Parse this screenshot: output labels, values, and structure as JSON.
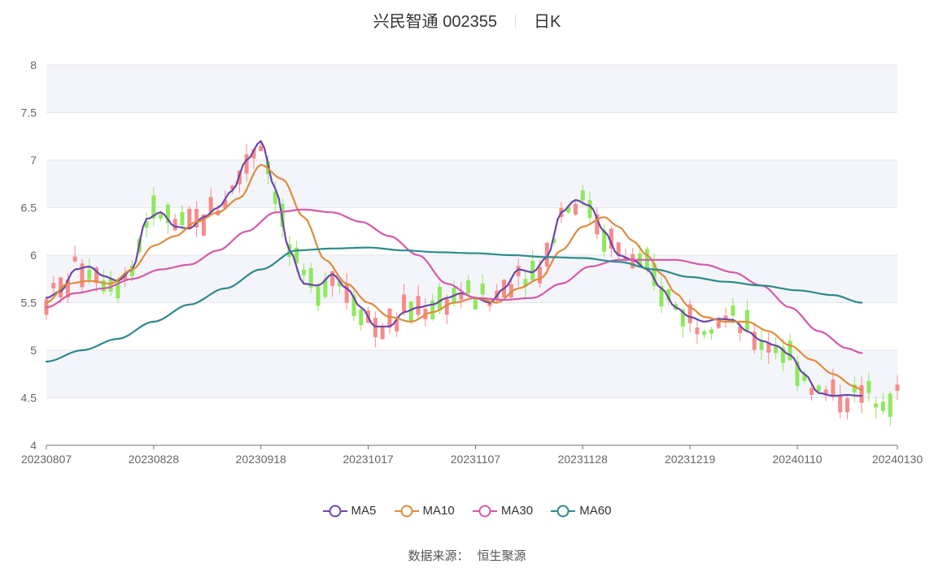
{
  "header": {
    "stock": "兴民智通 002355",
    "period": "日K"
  },
  "source": {
    "label": "数据来源：",
    "provider": "恒生聚源"
  },
  "colors": {
    "up": "#f58b8b",
    "down": "#8ee85c",
    "band": "#f4f5fa",
    "ma5": "#6b47a8",
    "ma10": "#df8c3c",
    "ma30": "#d35aa8",
    "ma60": "#2e8a8a"
  },
  "chart_data": {
    "type": "candlestick",
    "title": "兴民智通 002355 日K",
    "ylim": [
      4,
      8
    ],
    "y_ticks": [
      "4",
      "4.5",
      "5",
      "5.5",
      "6",
      "6.5",
      "7",
      "7.5",
      "8"
    ],
    "x_ticks": [
      "20230807",
      "20230828",
      "20230918",
      "20231017",
      "20231107",
      "20231128",
      "20231219",
      "20240110",
      "20240130"
    ],
    "x_tick_positions": [
      0,
      15,
      30,
      45,
      60,
      75,
      90,
      105,
      119
    ],
    "num_sessions": 120,
    "legend": [
      "MA5",
      "MA10",
      "MA30",
      "MA60"
    ],
    "series": [
      {
        "name": "MA5",
        "knots": [
          [
            0,
            5.55
          ],
          [
            2,
            5.62
          ],
          [
            4,
            5.85
          ],
          [
            6,
            5.88
          ],
          [
            8,
            5.78
          ],
          [
            10,
            5.73
          ],
          [
            12,
            5.85
          ],
          [
            14,
            6.38
          ],
          [
            16,
            6.45
          ],
          [
            18,
            6.3
          ],
          [
            20,
            6.28
          ],
          [
            22,
            6.4
          ],
          [
            24,
            6.5
          ],
          [
            26,
            6.68
          ],
          [
            28,
            7.0
          ],
          [
            30,
            7.2
          ],
          [
            32,
            6.7
          ],
          [
            34,
            6.05
          ],
          [
            36,
            5.7
          ],
          [
            38,
            5.68
          ],
          [
            40,
            5.8
          ],
          [
            42,
            5.65
          ],
          [
            44,
            5.45
          ],
          [
            46,
            5.25
          ],
          [
            48,
            5.25
          ],
          [
            50,
            5.4
          ],
          [
            52,
            5.45
          ],
          [
            54,
            5.48
          ],
          [
            56,
            5.55
          ],
          [
            58,
            5.6
          ],
          [
            60,
            5.55
          ],
          [
            62,
            5.5
          ],
          [
            64,
            5.65
          ],
          [
            66,
            5.85
          ],
          [
            68,
            5.82
          ],
          [
            70,
            5.98
          ],
          [
            72,
            6.45
          ],
          [
            74,
            6.58
          ],
          [
            76,
            6.52
          ],
          [
            78,
            6.25
          ],
          [
            80,
            6.0
          ],
          [
            82,
            5.95
          ],
          [
            84,
            5.85
          ],
          [
            86,
            5.65
          ],
          [
            88,
            5.45
          ],
          [
            90,
            5.35
          ],
          [
            92,
            5.3
          ],
          [
            94,
            5.33
          ],
          [
            96,
            5.32
          ],
          [
            98,
            5.2
          ],
          [
            100,
            5.1
          ],
          [
            102,
            5.05
          ],
          [
            104,
            4.95
          ],
          [
            106,
            4.75
          ],
          [
            108,
            4.55
          ],
          [
            110,
            4.52
          ],
          [
            112,
            4.53
          ],
          [
            114,
            4.52
          ]
        ]
      },
      {
        "name": "MA10",
        "knots": [
          [
            0,
            5.5
          ],
          [
            3,
            5.7
          ],
          [
            6,
            5.73
          ],
          [
            9,
            5.7
          ],
          [
            12,
            5.85
          ],
          [
            15,
            6.1
          ],
          [
            18,
            6.2
          ],
          [
            21,
            6.35
          ],
          [
            24,
            6.45
          ],
          [
            27,
            6.6
          ],
          [
            30,
            6.95
          ],
          [
            33,
            6.8
          ],
          [
            36,
            6.4
          ],
          [
            39,
            5.95
          ],
          [
            42,
            5.7
          ],
          [
            45,
            5.5
          ],
          [
            48,
            5.35
          ],
          [
            51,
            5.3
          ],
          [
            54,
            5.4
          ],
          [
            57,
            5.5
          ],
          [
            60,
            5.55
          ],
          [
            63,
            5.5
          ],
          [
            66,
            5.65
          ],
          [
            69,
            5.75
          ],
          [
            72,
            6.05
          ],
          [
            75,
            6.3
          ],
          [
            78,
            6.4
          ],
          [
            80,
            6.3
          ],
          [
            82,
            6.15
          ],
          [
            84,
            6.0
          ],
          [
            86,
            5.8
          ],
          [
            88,
            5.6
          ],
          [
            90,
            5.45
          ],
          [
            92,
            5.35
          ],
          [
            95,
            5.3
          ],
          [
            98,
            5.3
          ],
          [
            101,
            5.2
          ],
          [
            104,
            5.05
          ],
          [
            107,
            4.9
          ],
          [
            110,
            4.75
          ],
          [
            113,
            4.62
          ],
          [
            114,
            4.58
          ]
        ]
      },
      {
        "name": "MA30",
        "knots": [
          [
            0,
            5.45
          ],
          [
            4,
            5.6
          ],
          [
            8,
            5.65
          ],
          [
            12,
            5.75
          ],
          [
            16,
            5.85
          ],
          [
            20,
            5.9
          ],
          [
            24,
            6.05
          ],
          [
            28,
            6.25
          ],
          [
            32,
            6.45
          ],
          [
            36,
            6.48
          ],
          [
            40,
            6.45
          ],
          [
            44,
            6.35
          ],
          [
            48,
            6.2
          ],
          [
            52,
            6.0
          ],
          [
            56,
            5.7
          ],
          [
            60,
            5.55
          ],
          [
            64,
            5.53
          ],
          [
            68,
            5.55
          ],
          [
            72,
            5.7
          ],
          [
            76,
            5.88
          ],
          [
            80,
            5.95
          ],
          [
            84,
            5.95
          ],
          [
            88,
            5.95
          ],
          [
            92,
            5.9
          ],
          [
            96,
            5.82
          ],
          [
            100,
            5.68
          ],
          [
            104,
            5.45
          ],
          [
            108,
            5.2
          ],
          [
            112,
            5.02
          ],
          [
            114,
            4.97
          ]
        ]
      },
      {
        "name": "MA60",
        "knots": [
          [
            0,
            4.88
          ],
          [
            5,
            5.0
          ],
          [
            10,
            5.12
          ],
          [
            15,
            5.3
          ],
          [
            20,
            5.48
          ],
          [
            25,
            5.65
          ],
          [
            30,
            5.85
          ],
          [
            35,
            6.05
          ],
          [
            40,
            6.07
          ],
          [
            45,
            6.08
          ],
          [
            50,
            6.05
          ],
          [
            55,
            6.03
          ],
          [
            60,
            6.02
          ],
          [
            65,
            6.0
          ],
          [
            70,
            5.98
          ],
          [
            75,
            5.97
          ],
          [
            80,
            5.93
          ],
          [
            85,
            5.85
          ],
          [
            90,
            5.77
          ],
          [
            95,
            5.72
          ],
          [
            100,
            5.68
          ],
          [
            105,
            5.63
          ],
          [
            110,
            5.58
          ],
          [
            114,
            5.5
          ]
        ]
      }
    ]
  }
}
